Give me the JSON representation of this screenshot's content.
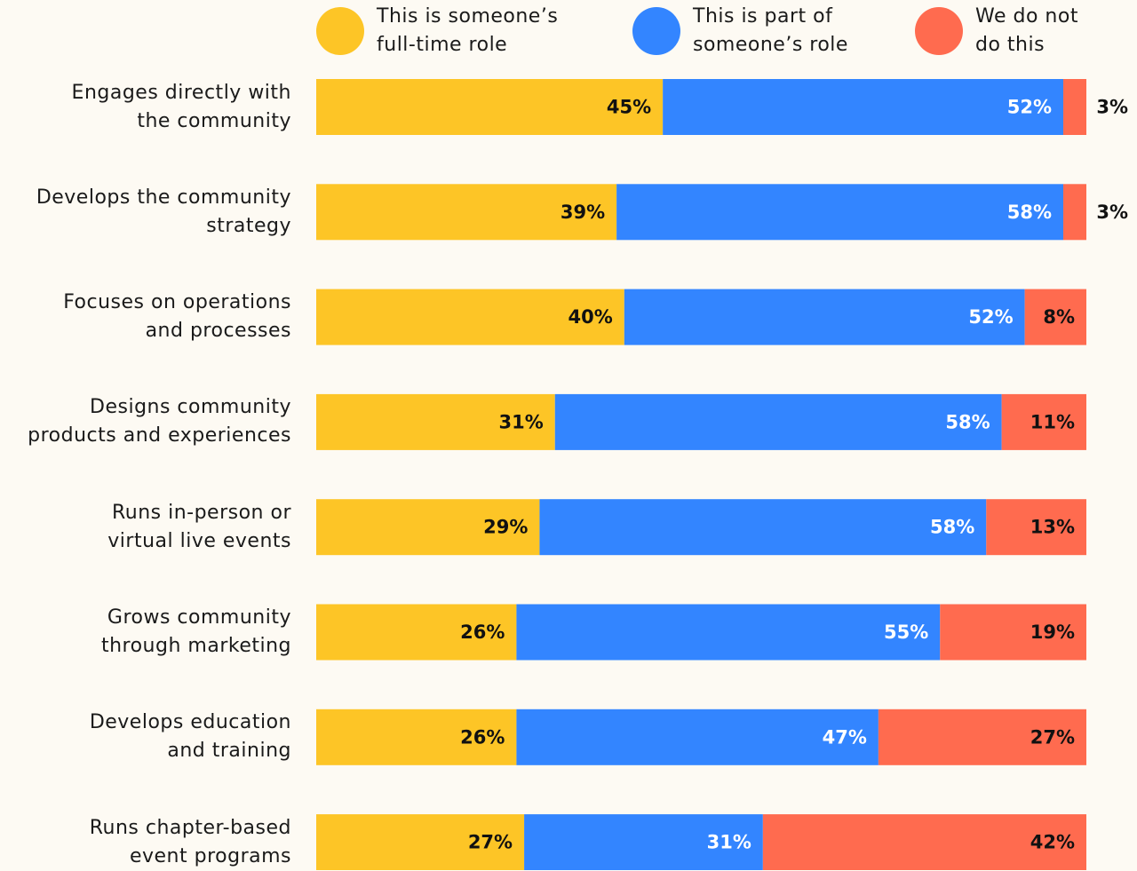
{
  "chart_data": {
    "type": "stacked-bar-horizontal",
    "categories": [
      "Engages directly with\nthe community",
      "Develops the community\nstrategy",
      "Focuses on operations\nand processes",
      "Designs community\nproducts and experiences",
      "Runs in-person or\nvirtual live events",
      "Grows community\nthrough marketing",
      "Develops education\nand training",
      "Runs chapter-based\nevent programs"
    ],
    "series": [
      {
        "name": "This is someone’s\nfull-time role",
        "color": "#fdc526",
        "values": [
          45,
          39,
          40,
          31,
          29,
          26,
          26,
          27
        ],
        "value_labels": [
          "45%",
          "39%",
          "40%",
          "31%",
          "29%",
          "26%",
          "26%",
          "27%"
        ]
      },
      {
        "name": "This is part of\nsomeone’s role",
        "color": "#3385ff",
        "values": [
          52,
          58,
          52,
          58,
          58,
          55,
          47,
          31
        ],
        "value_labels": [
          "52%",
          "58%",
          "52%",
          "58%",
          "58%",
          "55%",
          "47%",
          "31%"
        ]
      },
      {
        "name": "We do not\ndo this",
        "color": "#ff6b4f",
        "values": [
          3,
          3,
          8,
          11,
          13,
          19,
          27,
          42
        ],
        "value_labels": [
          "3%",
          "3%",
          "8%",
          "11%",
          "13%",
          "19%",
          "27%",
          "42%"
        ]
      }
    ],
    "xlim": [
      0,
      100
    ]
  }
}
